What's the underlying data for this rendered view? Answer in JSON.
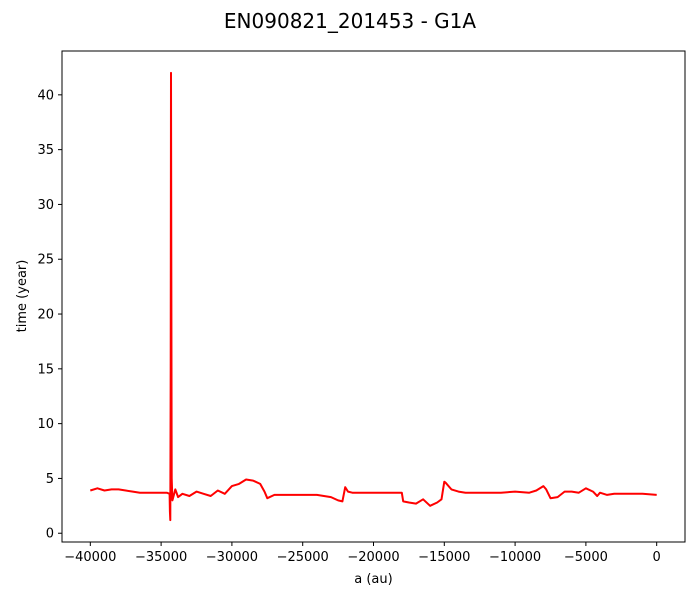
{
  "chart_data": {
    "type": "line",
    "title": "EN090821_201453 - G1A",
    "xlabel": "a (au)",
    "ylabel": "time (year)",
    "xlim": [
      -42000,
      2000
    ],
    "ylim": [
      -0.8,
      44
    ],
    "xticks": [
      -40000,
      -35000,
      -30000,
      -25000,
      -20000,
      -15000,
      -10000,
      -5000,
      0
    ],
    "yticks": [
      0,
      5,
      10,
      15,
      20,
      25,
      30,
      35,
      40
    ],
    "grid": false,
    "series": [
      {
        "color": "#ff0000",
        "x": [
          -40000,
          -39500,
          -39000,
          -38500,
          -38000,
          -37500,
          -37000,
          -36500,
          -36000,
          -35500,
          -35000,
          -34600,
          -34400,
          -34380,
          -34350,
          -34320,
          -34300,
          -34280,
          -34260,
          -34250,
          -34200,
          -34100,
          -34000,
          -33800,
          -33500,
          -33000,
          -32500,
          -32000,
          -31500,
          -31000,
          -30500,
          -30000,
          -29500,
          -29000,
          -28500,
          -28000,
          -27700,
          -27500,
          -27000,
          -26500,
          -26000,
          -25000,
          -24000,
          -23500,
          -23000,
          -22500,
          -22200,
          -22000,
          -21800,
          -21500,
          -21000,
          -20000,
          -19000,
          -18500,
          -18000,
          -17900,
          -17500,
          -17000,
          -16500,
          -16000,
          -15500,
          -15200,
          -15000,
          -14900,
          -14500,
          -14000,
          -13500,
          -13000,
          -12000,
          -11000,
          -10000,
          -9000,
          -8500,
          -8000,
          -7800,
          -7500,
          -7000,
          -6500,
          -6000,
          -5500,
          -5000,
          -4500,
          -4200,
          -4000,
          -3500,
          -3000,
          -2000,
          -1000,
          0
        ],
        "y": [
          3.9,
          4.1,
          3.9,
          4.0,
          4.0,
          3.9,
          3.8,
          3.7,
          3.7,
          3.7,
          3.7,
          3.7,
          3.6,
          2.0,
          1.2,
          15.0,
          42.0,
          25.0,
          9.0,
          5.0,
          3.0,
          3.5,
          4.0,
          3.3,
          3.6,
          3.4,
          3.8,
          3.6,
          3.4,
          3.9,
          3.6,
          4.3,
          4.5,
          4.9,
          4.8,
          4.5,
          3.8,
          3.2,
          3.5,
          3.5,
          3.5,
          3.5,
          3.5,
          3.4,
          3.3,
          3.0,
          2.9,
          4.2,
          3.8,
          3.7,
          3.7,
          3.7,
          3.7,
          3.7,
          3.7,
          2.9,
          2.8,
          2.7,
          3.1,
          2.5,
          2.8,
          3.1,
          4.7,
          4.6,
          4.0,
          3.8,
          3.7,
          3.7,
          3.7,
          3.7,
          3.8,
          3.7,
          3.9,
          4.3,
          4.0,
          3.2,
          3.3,
          3.8,
          3.8,
          3.7,
          4.1,
          3.8,
          3.4,
          3.7,
          3.5,
          3.6,
          3.6,
          3.6,
          3.5
        ]
      }
    ]
  }
}
